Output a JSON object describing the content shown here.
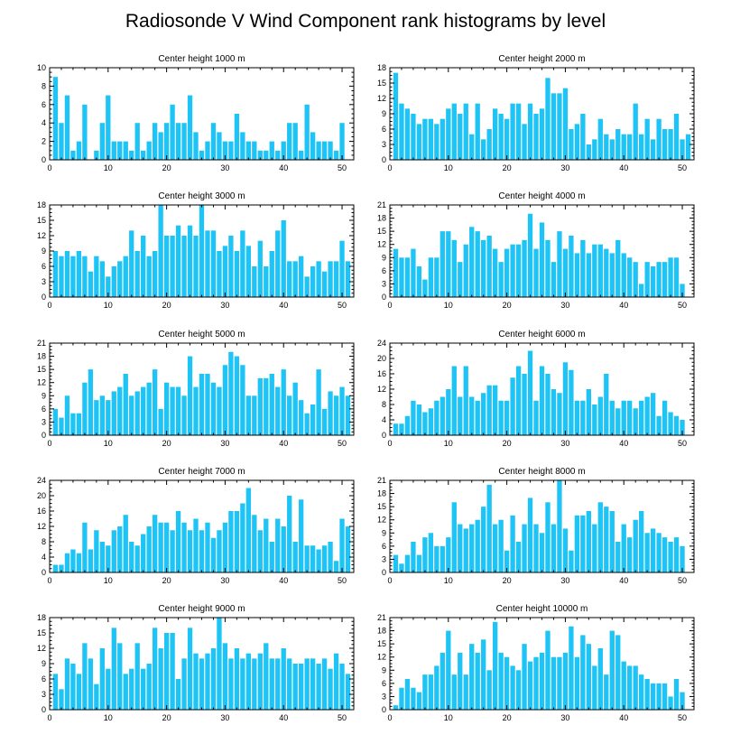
{
  "title": "Radiosonde V Wind Component rank histograms by level",
  "bar_color": "#1ec4f5",
  "chart_data": [
    {
      "type": "bar",
      "title": "Center height 1000 m",
      "ylim": [
        0,
        10
      ],
      "yticks": [
        0,
        2,
        4,
        6,
        8,
        10
      ],
      "xticks": [
        0,
        10,
        20,
        30,
        40,
        50
      ],
      "x": [
        1,
        2,
        3,
        4,
        5,
        6,
        7,
        8,
        9,
        10,
        11,
        12,
        13,
        14,
        15,
        16,
        17,
        18,
        19,
        20,
        21,
        22,
        23,
        24,
        25,
        26,
        27,
        28,
        29,
        30,
        31,
        32,
        33,
        34,
        35,
        36,
        37,
        38,
        39,
        40,
        41,
        42,
        43,
        44,
        45,
        46,
        47,
        48,
        49,
        50,
        51
      ],
      "values": [
        9,
        4,
        7,
        1,
        2,
        6,
        0,
        1,
        4,
        7,
        2,
        2,
        2,
        1,
        4,
        1,
        2,
        4,
        3,
        4,
        6,
        4,
        4,
        7,
        3,
        1,
        2,
        4,
        3,
        2,
        2,
        5,
        3,
        2,
        2,
        1,
        1,
        2,
        1,
        2,
        4,
        4,
        1,
        6,
        3,
        2,
        2,
        2,
        1,
        4,
        0
      ]
    },
    {
      "type": "bar",
      "title": "Center height 2000 m",
      "ylim": [
        0,
        18
      ],
      "yticks": [
        0,
        3,
        6,
        9,
        12,
        15,
        18
      ],
      "xticks": [
        0,
        10,
        20,
        30,
        40,
        50
      ],
      "x": [
        1,
        2,
        3,
        4,
        5,
        6,
        7,
        8,
        9,
        10,
        11,
        12,
        13,
        14,
        15,
        16,
        17,
        18,
        19,
        20,
        21,
        22,
        23,
        24,
        25,
        26,
        27,
        28,
        29,
        30,
        31,
        32,
        33,
        34,
        35,
        36,
        37,
        38,
        39,
        40,
        41,
        42,
        43,
        44,
        45,
        46,
        47,
        48,
        49,
        50,
        51
      ],
      "values": [
        17,
        11,
        10,
        9,
        7,
        8,
        8,
        7,
        8,
        10,
        11,
        9,
        11,
        5,
        11,
        4,
        6,
        10,
        9,
        8,
        11,
        11,
        7,
        11,
        9,
        10,
        16,
        13,
        13,
        14,
        6,
        7,
        9,
        3,
        4,
        8,
        5,
        4,
        6,
        5,
        5,
        11,
        5,
        8,
        4,
        8,
        6,
        6,
        9,
        4,
        5
      ]
    },
    {
      "type": "bar",
      "title": "Center height 3000 m",
      "ylim": [
        0,
        18
      ],
      "yticks": [
        0,
        3,
        6,
        9,
        12,
        15,
        18
      ],
      "xticks": [
        0,
        10,
        20,
        30,
        40,
        50
      ],
      "x": [
        1,
        2,
        3,
        4,
        5,
        6,
        7,
        8,
        9,
        10,
        11,
        12,
        13,
        14,
        15,
        16,
        17,
        18,
        19,
        20,
        21,
        22,
        23,
        24,
        25,
        26,
        27,
        28,
        29,
        30,
        31,
        32,
        33,
        34,
        35,
        36,
        37,
        38,
        39,
        40,
        41,
        42,
        43,
        44,
        45,
        46,
        47,
        48,
        49,
        50,
        51
      ],
      "values": [
        9,
        8,
        9,
        8,
        9,
        8,
        5,
        8,
        7,
        4,
        6,
        7,
        8,
        13,
        9,
        12,
        8,
        9,
        18,
        12,
        12,
        14,
        12,
        14,
        12,
        18,
        13,
        13,
        9,
        10,
        12,
        9,
        13,
        10,
        6,
        11,
        6,
        9,
        13,
        15,
        7,
        7,
        8,
        4,
        6,
        7,
        5,
        7,
        7,
        11,
        7
      ]
    },
    {
      "type": "bar",
      "title": "Center height 4000 m",
      "ylim": [
        0,
        21
      ],
      "yticks": [
        0,
        3,
        6,
        9,
        12,
        15,
        18,
        21
      ],
      "xticks": [
        0,
        10,
        20,
        30,
        40,
        50
      ],
      "x": [
        1,
        2,
        3,
        4,
        5,
        6,
        7,
        8,
        9,
        10,
        11,
        12,
        13,
        14,
        15,
        16,
        17,
        18,
        19,
        20,
        21,
        22,
        23,
        24,
        25,
        26,
        27,
        28,
        29,
        30,
        31,
        32,
        33,
        34,
        35,
        36,
        37,
        38,
        39,
        40,
        41,
        42,
        43,
        44,
        45,
        46,
        47,
        48,
        49,
        50,
        51
      ],
      "values": [
        11,
        9,
        9,
        11,
        7,
        4,
        9,
        9,
        15,
        15,
        13,
        8,
        12,
        16,
        15,
        13,
        14,
        11,
        8,
        11,
        12,
        12,
        13,
        19,
        11,
        17,
        13,
        8,
        15,
        11,
        14,
        10,
        13,
        10,
        12,
        12,
        11,
        10,
        13,
        10,
        9,
        8,
        3,
        8,
        7,
        8,
        8,
        9,
        9,
        3,
        0
      ]
    },
    {
      "type": "bar",
      "title": "Center height 5000 m",
      "ylim": [
        0,
        21
      ],
      "yticks": [
        0,
        3,
        6,
        9,
        12,
        15,
        18,
        21
      ],
      "xticks": [
        0,
        10,
        20,
        30,
        40,
        50
      ],
      "x": [
        1,
        2,
        3,
        4,
        5,
        6,
        7,
        8,
        9,
        10,
        11,
        12,
        13,
        14,
        15,
        16,
        17,
        18,
        19,
        20,
        21,
        22,
        23,
        24,
        25,
        26,
        27,
        28,
        29,
        30,
        31,
        32,
        33,
        34,
        35,
        36,
        37,
        38,
        39,
        40,
        41,
        42,
        43,
        44,
        45,
        46,
        47,
        48,
        49,
        50,
        51
      ],
      "values": [
        6,
        4,
        9,
        5,
        5,
        12,
        15,
        8,
        9,
        8,
        10,
        11,
        14,
        9,
        10,
        11,
        12,
        15,
        6,
        12,
        11,
        11,
        9,
        18,
        11,
        14,
        14,
        12,
        11,
        16,
        19,
        18,
        16,
        9,
        9,
        13,
        13,
        14,
        11,
        15,
        9,
        12,
        8,
        5,
        7,
        15,
        6,
        10,
        9,
        11,
        9
      ]
    },
    {
      "type": "bar",
      "title": "Center height 6000 m",
      "ylim": [
        0,
        24
      ],
      "yticks": [
        0,
        4,
        8,
        12,
        16,
        20,
        24
      ],
      "xticks": [
        0,
        10,
        20,
        30,
        40,
        50
      ],
      "x": [
        1,
        2,
        3,
        4,
        5,
        6,
        7,
        8,
        9,
        10,
        11,
        12,
        13,
        14,
        15,
        16,
        17,
        18,
        19,
        20,
        21,
        22,
        23,
        24,
        25,
        26,
        27,
        28,
        29,
        30,
        31,
        32,
        33,
        34,
        35,
        36,
        37,
        38,
        39,
        40,
        41,
        42,
        43,
        44,
        45,
        46,
        47,
        48,
        49,
        50,
        51
      ],
      "values": [
        3,
        3,
        5,
        9,
        8,
        6,
        7,
        9,
        10,
        12,
        18,
        10,
        18,
        10,
        9,
        11,
        13,
        13,
        9,
        9,
        15,
        18,
        16,
        22,
        9,
        18,
        16,
        12,
        11,
        19,
        17,
        9,
        9,
        12,
        8,
        10,
        16,
        9,
        7,
        9,
        9,
        7,
        9,
        10,
        11,
        5,
        9,
        6,
        5,
        4,
        0
      ]
    },
    {
      "type": "bar",
      "title": "Center height 7000 m",
      "ylim": [
        0,
        24
      ],
      "yticks": [
        0,
        4,
        8,
        12,
        16,
        20,
        24
      ],
      "xticks": [
        0,
        10,
        20,
        30,
        40,
        50
      ],
      "x": [
        1,
        2,
        3,
        4,
        5,
        6,
        7,
        8,
        9,
        10,
        11,
        12,
        13,
        14,
        15,
        16,
        17,
        18,
        19,
        20,
        21,
        22,
        23,
        24,
        25,
        26,
        27,
        28,
        29,
        30,
        31,
        32,
        33,
        34,
        35,
        36,
        37,
        38,
        39,
        40,
        41,
        42,
        43,
        44,
        45,
        46,
        47,
        48,
        49,
        50,
        51
      ],
      "values": [
        2,
        2,
        5,
        6,
        5,
        13,
        6,
        11,
        8,
        7,
        11,
        12,
        15,
        8,
        7,
        10,
        12,
        15,
        13,
        13,
        11,
        16,
        13,
        11,
        14,
        11,
        13,
        9,
        11,
        13,
        16,
        16,
        18,
        22,
        15,
        11,
        14,
        8,
        14,
        12,
        20,
        8,
        19,
        7,
        7,
        6,
        7,
        8,
        3,
        14,
        12
      ]
    },
    {
      "type": "bar",
      "title": "Center height 8000 m",
      "ylim": [
        0,
        21
      ],
      "yticks": [
        0,
        3,
        6,
        9,
        12,
        15,
        18,
        21
      ],
      "xticks": [
        0,
        10,
        20,
        30,
        40,
        50
      ],
      "x": [
        1,
        2,
        3,
        4,
        5,
        6,
        7,
        8,
        9,
        10,
        11,
        12,
        13,
        14,
        15,
        16,
        17,
        18,
        19,
        20,
        21,
        22,
        23,
        24,
        25,
        26,
        27,
        28,
        29,
        30,
        31,
        32,
        33,
        34,
        35,
        36,
        37,
        38,
        39,
        40,
        41,
        42,
        43,
        44,
        45,
        46,
        47,
        48,
        49,
        50,
        51
      ],
      "values": [
        4,
        2,
        4,
        7,
        4,
        8,
        9,
        6,
        6,
        8,
        16,
        11,
        10,
        11,
        12,
        15,
        20,
        11,
        12,
        5,
        13,
        7,
        11,
        17,
        11,
        9,
        16,
        11,
        21,
        10,
        5,
        13,
        13,
        14,
        11,
        16,
        15,
        14,
        7,
        11,
        8,
        12,
        14,
        9,
        10,
        9,
        8,
        7,
        8,
        6,
        0
      ]
    },
    {
      "type": "bar",
      "title": "Center height 9000 m",
      "ylim": [
        0,
        18
      ],
      "yticks": [
        0,
        3,
        6,
        9,
        12,
        15,
        18
      ],
      "xticks": [
        0,
        10,
        20,
        30,
        40,
        50
      ],
      "x": [
        1,
        2,
        3,
        4,
        5,
        6,
        7,
        8,
        9,
        10,
        11,
        12,
        13,
        14,
        15,
        16,
        17,
        18,
        19,
        20,
        21,
        22,
        23,
        24,
        25,
        26,
        27,
        28,
        29,
        30,
        31,
        32,
        33,
        34,
        35,
        36,
        37,
        38,
        39,
        40,
        41,
        42,
        43,
        44,
        45,
        46,
        47,
        48,
        49,
        50,
        51
      ],
      "values": [
        7,
        4,
        10,
        9,
        7,
        13,
        10,
        5,
        12,
        8,
        16,
        13,
        7,
        8,
        13,
        8,
        9,
        16,
        12,
        15,
        15,
        6,
        10,
        16,
        11,
        10,
        11,
        12,
        18,
        13,
        10,
        12,
        10,
        11,
        10,
        11,
        13,
        10,
        10,
        12,
        10,
        9,
        9,
        10,
        10,
        9,
        10,
        8,
        11,
        9,
        7
      ]
    },
    {
      "type": "bar",
      "title": "Center height 10000 m",
      "ylim": [
        0,
        21
      ],
      "yticks": [
        0,
        3,
        6,
        9,
        12,
        15,
        18,
        21
      ],
      "xticks": [
        0,
        10,
        20,
        30,
        40,
        50
      ],
      "x": [
        1,
        2,
        3,
        4,
        5,
        6,
        7,
        8,
        9,
        10,
        11,
        12,
        13,
        14,
        15,
        16,
        17,
        18,
        19,
        20,
        21,
        22,
        23,
        24,
        25,
        26,
        27,
        28,
        29,
        30,
        31,
        32,
        33,
        34,
        35,
        36,
        37,
        38,
        39,
        40,
        41,
        42,
        43,
        44,
        45,
        46,
        47,
        48,
        49,
        50,
        51
      ],
      "values": [
        1,
        5,
        7,
        5,
        4,
        8,
        8,
        10,
        13,
        18,
        8,
        13,
        8,
        15,
        13,
        16,
        9,
        20,
        13,
        12,
        10,
        9,
        15,
        11,
        12,
        13,
        18,
        12,
        12,
        13,
        19,
        12,
        17,
        15,
        10,
        14,
        8,
        18,
        17,
        11,
        10,
        10,
        8,
        7,
        6,
        6,
        6,
        3,
        7,
        4,
        0
      ]
    }
  ]
}
